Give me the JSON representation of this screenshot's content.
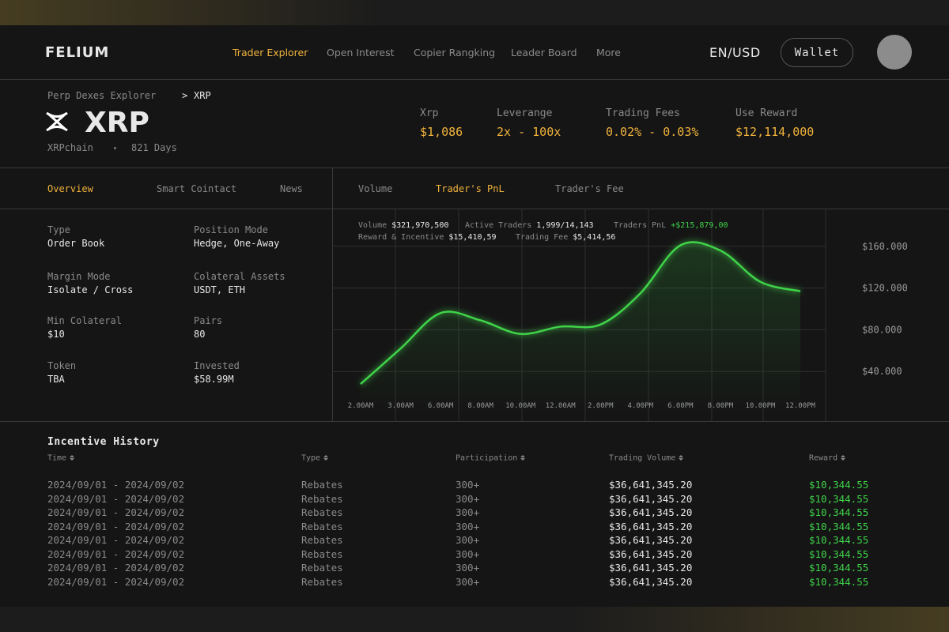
{
  "header": {
    "logo": "FELIUM",
    "nav": [
      "Trader Explorer",
      "Open Interest",
      "Copier Rangking",
      "Leader Board",
      "More"
    ],
    "active_nav": 0,
    "locale": "EN/USD",
    "wallet": "Wallet"
  },
  "breadcrumb": {
    "parent": "Perp Dexes Explorer",
    "separator": ">",
    "current": "XRP"
  },
  "asset": {
    "title": "XRP",
    "chain": "XRPchain",
    "age": "821 Days"
  },
  "summary": [
    {
      "label": "Xrp",
      "value": "$1,086"
    },
    {
      "label": "Leverange",
      "value": "2x - 100x"
    },
    {
      "label": "Trading Fees",
      "value": "0.02% - 0.03%"
    },
    {
      "label": "Use Reward",
      "value": "$12,114,000"
    }
  ],
  "tabs": [
    "Overview",
    "Smart Cointact",
    "News"
  ],
  "active_tab": 0,
  "chart_tabs": [
    "Volume",
    "Trader's PnL",
    "Trader's Fee"
  ],
  "active_chart_tab": 1,
  "details": [
    {
      "label": "Type",
      "value": "Order Book"
    },
    {
      "label": "Position Mode",
      "value": "Hedge, One-Away"
    },
    {
      "label": "Margin Mode",
      "value": "Isolate / Cross"
    },
    {
      "label": "Colateral Assets",
      "value": "USDT, ETH"
    },
    {
      "label": "Min Colateral",
      "value": "$10"
    },
    {
      "label": "Pairs",
      "value": "80"
    },
    {
      "label": "Token",
      "value": "TBA"
    },
    {
      "label": "Invested",
      "value": "$58.99M"
    }
  ],
  "chart_data": {
    "type": "line",
    "stats": [
      {
        "label": "Volume",
        "value": "$321,970,500"
      },
      {
        "label": "Active Traders",
        "value": "1,999/14,143"
      },
      {
        "label": "Traders PnL",
        "value": "+$215,879,00"
      },
      {
        "label": "Reward & Incentive",
        "value": "$15,410,59"
      },
      {
        "label": "Trading Fee",
        "value": "$5,414,56"
      }
    ],
    "categories": [
      "2.00AM",
      "3.00AM",
      "6.00AM",
      "8.00AM",
      "10.00AM",
      "12.00AM",
      "2.00PM",
      "4.00PM",
      "6.00PM",
      "8.00PM",
      "10.00PM",
      "12.00PM"
    ],
    "values": [
      28000,
      62000,
      96000,
      89000,
      76000,
      83000,
      85000,
      115000,
      161000,
      156000,
      126000,
      117000
    ],
    "color": "#3fd34a",
    "ylim": [
      0,
      200000
    ],
    "yticks": [
      {
        "value": 40000,
        "label": "$40.000"
      },
      {
        "value": 80000,
        "label": "$80.000"
      },
      {
        "value": 120000,
        "label": "$120.000"
      },
      {
        "value": 160000,
        "label": "$160.000"
      }
    ],
    "grid": true
  },
  "table": {
    "title": "Incentive History",
    "columns": [
      "Time",
      "Type",
      "Participation",
      "Trading Volume",
      "Reward"
    ],
    "rows": [
      [
        "2024/09/01 - 2024/09/02",
        "Rebates",
        "300+",
        "$36,641,345.20",
        "$10,344.55"
      ],
      [
        "2024/09/01 - 2024/09/02",
        "Rebates",
        "300+",
        "$36,641,345.20",
        "$10,344.55"
      ],
      [
        "2024/09/01 - 2024/09/02",
        "Rebates",
        "300+",
        "$36,641,345.20",
        "$10,344.55"
      ],
      [
        "2024/09/01 - 2024/09/02",
        "Rebates",
        "300+",
        "$36,641,345.20",
        "$10,344.55"
      ],
      [
        "2024/09/01 - 2024/09/02",
        "Rebates",
        "300+",
        "$36,641,345.20",
        "$10,344.55"
      ],
      [
        "2024/09/01 - 2024/09/02",
        "Rebates",
        "300+",
        "$36,641,345.20",
        "$10,344.55"
      ],
      [
        "2024/09/01 - 2024/09/02",
        "Rebates",
        "300+",
        "$36,641,345.20",
        "$10,344.55"
      ],
      [
        "2024/09/01 - 2024/09/02",
        "Rebates",
        "300+",
        "$36,641,345.20",
        "$10,344.55"
      ]
    ]
  }
}
